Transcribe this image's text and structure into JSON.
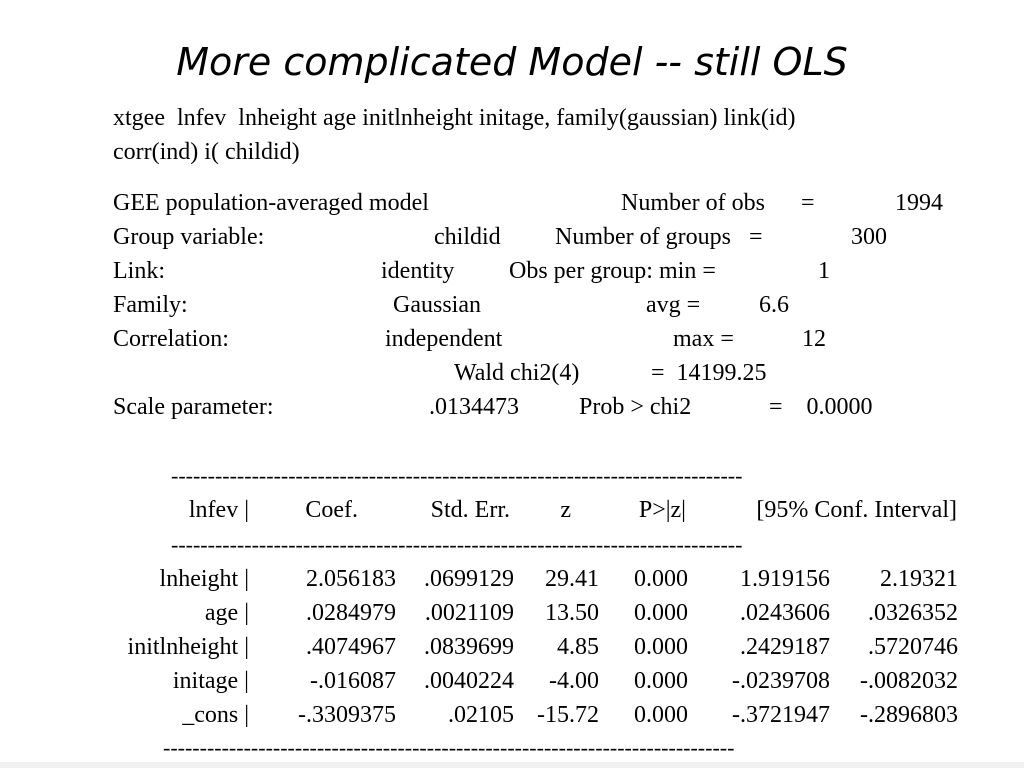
{
  "title": "More complicated Model -- still OLS",
  "command": {
    "line1": "xtgee  lnfev  lnheight age initlnheight initage, family(gaussian) link(id)",
    "line2": "corr(ind) i( childid)"
  },
  "header": {
    "model": "GEE population-averaged model",
    "nobs_label": "Number of obs      =",
    "nobs_value": "1994",
    "group_label": "Group variable:",
    "group_value": "childid",
    "ngroups_label": "Number of groups   =",
    "ngroups_value": "300",
    "link_label": "Link:",
    "link_value": "identity",
    "min_label": "Obs per group: min =",
    "min_value": "1",
    "family_label": "Family:",
    "family_value": "Gaussian",
    "avg_label": "avg =",
    "avg_value": "6.6",
    "corr_label": "Correlation:",
    "corr_value": "independent",
    "max_label": "max =",
    "max_value": "12",
    "wald_label": "Wald chi2(4)",
    "wald_value": "=  14199.25",
    "scale_label": "Scale parameter:",
    "scale_value": ".0134473",
    "prob_label": "Prob > chi2",
    "prob_value": "=    0.0000"
  },
  "table": {
    "rule": "------------------------------------------------------------------------------",
    "headers": [
      "lnfev |",
      "Coef.",
      "Std. Err.",
      "z",
      "P>|z|",
      "[95% Conf. Interval]"
    ],
    "rows": [
      [
        "lnheight |",
        "2.056183",
        ".0699129",
        "29.41",
        "0.000",
        "1.919156",
        "2.19321"
      ],
      [
        "age |",
        ".0284979",
        ".0021109",
        "13.50",
        "0.000",
        ".0243606",
        ".0326352"
      ],
      [
        "initlnheight |",
        ".4074967",
        ".0839699",
        "4.85",
        "0.000",
        ".2429187",
        ".5720746"
      ],
      [
        "initage |",
        "-.016087",
        ".0040224",
        "-4.00",
        "0.000",
        "-.0239708",
        "-.0082032"
      ],
      [
        "_cons |",
        "-.3309375",
        ".02105",
        "-15.72",
        "0.000",
        "-.3721947",
        "-.2896803"
      ]
    ]
  }
}
